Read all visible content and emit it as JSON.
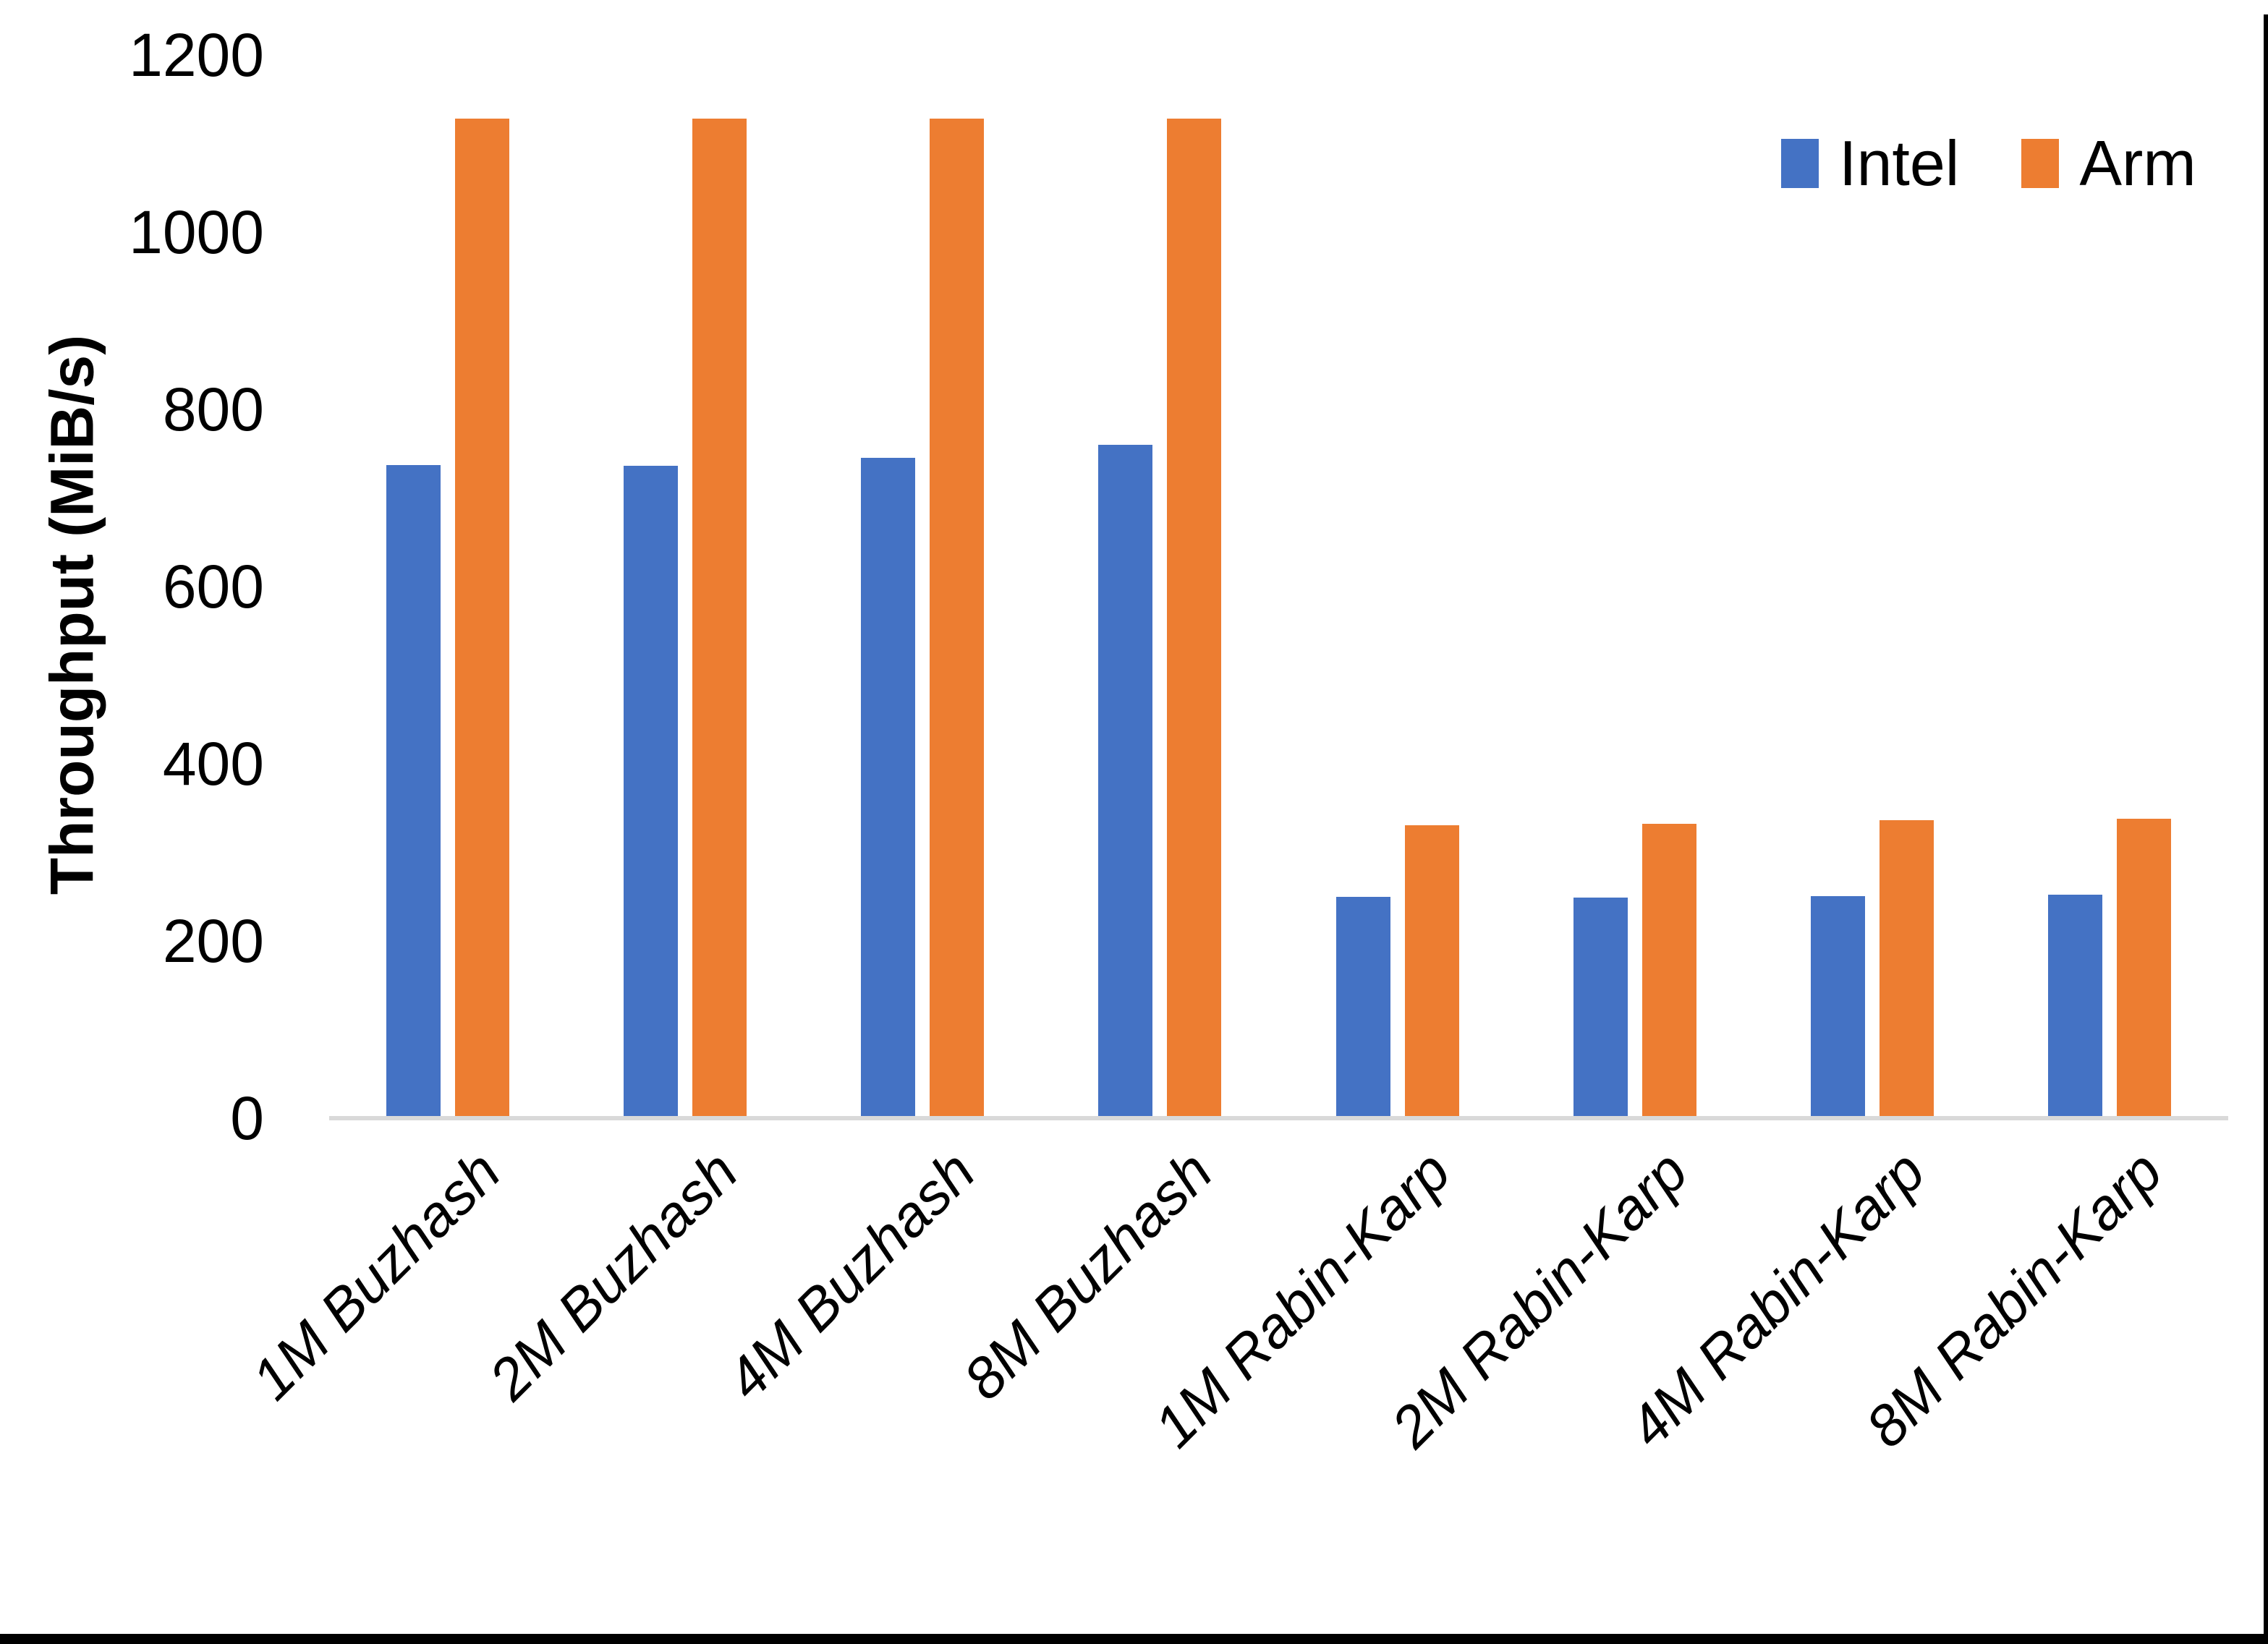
{
  "chart_data": {
    "type": "bar",
    "title": "",
    "xlabel": "",
    "ylabel": "Throughput (MiB/s)",
    "ylim": [
      0,
      1200
    ],
    "yticks": [
      0,
      200,
      400,
      600,
      800,
      1000,
      1200
    ],
    "grid": false,
    "legend_position": "top-right",
    "categories": [
      "1M Buzhash",
      "2M Buzhash",
      "4M Buzhash",
      "8M Buzhash",
      "1M Rabin-Karp",
      "2M Rabin-Karp",
      "4M Rabin-Karp",
      "8M Rabin-Karp"
    ],
    "series": [
      {
        "name": "Intel",
        "color": "#4472C4",
        "values": [
          737,
          736,
          745,
          760,
          250,
          249,
          251,
          252
        ]
      },
      {
        "name": "Arm",
        "color": "#ED7D31",
        "values": [
          1128,
          1128,
          1128,
          1128,
          331,
          332,
          336,
          338
        ]
      }
    ],
    "axis_line_color": "#D9D9D9"
  },
  "frame": {
    "edge_color": "#000000"
  }
}
